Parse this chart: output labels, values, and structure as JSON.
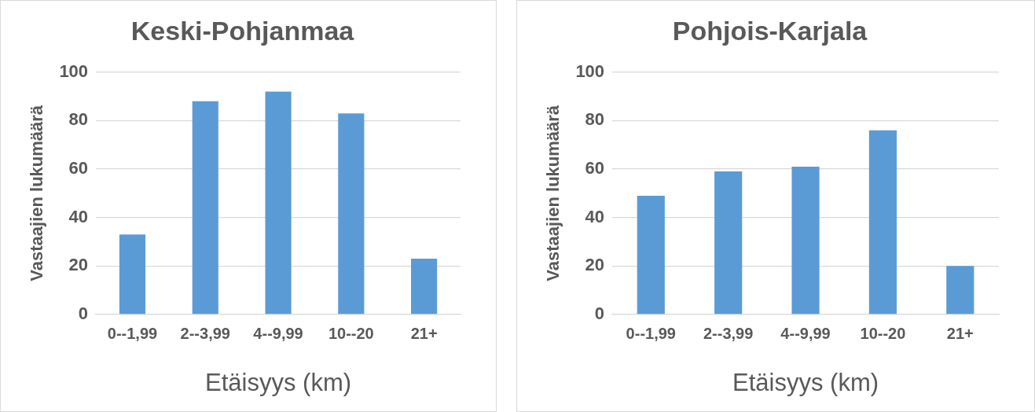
{
  "chart_data": [
    {
      "type": "bar",
      "title": "Keski-Pohjanmaa",
      "xlabel": "Etäisyys (km)",
      "ylabel": "Vastaajien lukumäärä",
      "categories": [
        "0--1,99",
        "2--3,99",
        "4--9,99",
        "10--20",
        "21+"
      ],
      "values": [
        33,
        88,
        92,
        83,
        23
      ],
      "color": "#5b9bd5",
      "ylim": [
        0,
        100
      ],
      "yticks": [
        0,
        20,
        40,
        60,
        80,
        100
      ],
      "grid": "y",
      "legend": false
    },
    {
      "type": "bar",
      "title": "Pohjois-Karjala",
      "xlabel": "Etäisyys (km)",
      "ylabel": "Vastaajien lukumäärä",
      "categories": [
        "0--1,99",
        "2--3,99",
        "4--9,99",
        "10--20",
        "21+"
      ],
      "values": [
        49,
        59,
        61,
        76,
        20
      ],
      "color": "#5b9bd5",
      "ylim": [
        0,
        100
      ],
      "yticks": [
        0,
        20,
        40,
        60,
        80,
        100
      ],
      "grid": "y",
      "legend": false
    }
  ]
}
